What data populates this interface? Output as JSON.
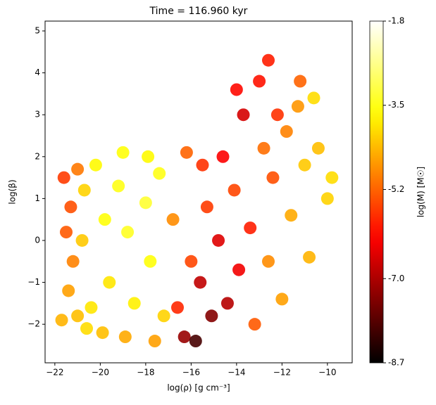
{
  "chart_data": {
    "type": "scatter",
    "title": "Time = 116.960 kyr",
    "x_label": "log(ρ) [g cm⁻³]",
    "y_label": "log(β)",
    "colorbar_label": "log(M) [M☉]",
    "colormap": "hot",
    "xlim": [
      -22.43,
      -8.91
    ],
    "ylim": [
      -2.92,
      5.235
    ],
    "clim": [
      -8.7,
      -1.8
    ],
    "xticks": [
      {
        "value": -22,
        "label": "−22"
      },
      {
        "value": -20,
        "label": "−20"
      },
      {
        "value": -18,
        "label": "−18"
      },
      {
        "value": -16,
        "label": "−16"
      },
      {
        "value": -14,
        "label": "−14"
      },
      {
        "value": -12,
        "label": "−12"
      },
      {
        "value": -10,
        "label": "−10"
      }
    ],
    "yticks": [
      {
        "value": -2,
        "label": "−2"
      },
      {
        "value": -1,
        "label": "−1"
      },
      0,
      1,
      2,
      3,
      4,
      5
    ],
    "cticks": [
      -8.7,
      {
        "value": -7,
        "label": "-7.0"
      },
      -5.2,
      -3.5,
      -1.8
    ],
    "x": [
      -21.6,
      -21.3,
      -21.0,
      -21.5,
      -21.2,
      -21.4,
      -21.0,
      -20.6,
      -21.7,
      -20.8,
      -20.7,
      -20.2,
      -19.8,
      -19.6,
      -19.2,
      -18.8,
      -18.5,
      -18.0,
      -17.8,
      -17.4,
      -17.2,
      -19.9,
      -18.9,
      -17.6,
      -20.4,
      -19.0,
      -17.9,
      -16.6,
      -16.3,
      -16.0,
      -15.8,
      -15.6,
      -15.3,
      -15.1,
      -14.8,
      -14.6,
      -14.4,
      -14.1,
      -13.9,
      -13.7,
      -13.4,
      -13.2,
      -13.0,
      -12.8,
      -12.6,
      -12.4,
      -12.2,
      -12.0,
      -11.8,
      -11.6,
      -11.3,
      -11.0,
      -10.8,
      -10.6,
      -10.4,
      -10.0,
      -9.8,
      -12.6,
      -11.2,
      -14.0,
      -15.5,
      -16.8,
      -16.2
    ],
    "y": [
      1.5,
      0.8,
      1.7,
      0.2,
      -0.5,
      -1.2,
      -1.8,
      -2.1,
      -1.9,
      0.0,
      1.2,
      1.8,
      0.5,
      -1.0,
      1.3,
      0.2,
      -1.5,
      0.9,
      -0.5,
      1.6,
      -1.8,
      -2.2,
      -2.3,
      -2.4,
      -1.6,
      2.1,
      2.0,
      -1.6,
      -2.3,
      -0.5,
      -2.4,
      -1.0,
      0.8,
      -1.8,
      0.0,
      2.0,
      -1.5,
      1.2,
      -0.7,
      3.0,
      0.3,
      -2.0,
      3.8,
      2.2,
      -0.5,
      1.5,
      3.0,
      -1.4,
      2.6,
      0.6,
      3.2,
      1.8,
      -0.4,
      3.4,
      2.2,
      1.0,
      1.5,
      4.3,
      3.8,
      3.6,
      1.8,
      0.5,
      2.1
    ],
    "c": [
      -5.6,
      -5.4,
      -5.0,
      -5.3,
      -4.9,
      -4.6,
      -4.3,
      -4.0,
      -4.4,
      -4.2,
      -4.1,
      -3.7,
      -3.6,
      -3.9,
      -3.5,
      -3.4,
      -3.8,
      -3.3,
      -3.6,
      -3.5,
      -4.1,
      -4.3,
      -4.5,
      -4.6,
      -3.9,
      -3.6,
      -3.7,
      -5.8,
      -7.2,
      -5.5,
      -8.0,
      -6.8,
      -5.6,
      -7.4,
      -6.5,
      -6.2,
      -6.9,
      -5.5,
      -6.3,
      -6.6,
      -5.9,
      -5.3,
      -6.0,
      -5.1,
      -4.8,
      -5.4,
      -5.7,
      -4.6,
      -4.9,
      -4.5,
      -4.7,
      -4.2,
      -4.4,
      -4.0,
      -4.3,
      -4.1,
      -4.0,
      -5.9,
      -5.2,
      -6.1,
      -5.7,
      -4.8,
      -5.2
    ]
  }
}
